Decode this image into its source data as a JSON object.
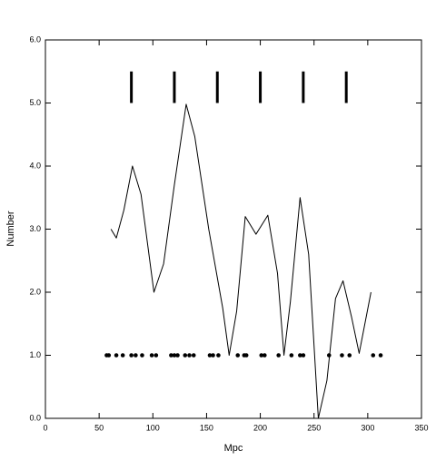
{
  "chart_data": {
    "type": "line",
    "xlabel": "Mpc",
    "ylabel": "Number",
    "xlim": [
      0,
      350
    ],
    "xticks": [
      0,
      50,
      100,
      150,
      200,
      250,
      300,
      350
    ],
    "ylim": [
      0,
      6
    ],
    "yticks": [
      {
        "value": 0,
        "label": "0.0"
      },
      {
        "value": 1,
        "label": "1.0"
      },
      {
        "value": 2,
        "label": "2.0"
      },
      {
        "value": 3,
        "label": "3.0"
      },
      {
        "value": 4,
        "label": "4.0"
      },
      {
        "value": 5,
        "label": "5.0"
      },
      {
        "value": 6,
        "label": "6.0"
      }
    ],
    "series": [
      {
        "color": "#000000",
        "style": "line",
        "x": [
          61,
          66,
          73,
          81,
          89,
          101,
          110,
          120,
          131,
          139,
          152,
          165,
          171,
          178,
          186,
          196,
          207,
          216,
          222,
          228,
          237,
          245,
          254,
          262,
          270,
          277,
          285,
          292,
          303
        ],
        "values": [
          3.0,
          2.86,
          3.3,
          4.0,
          3.55,
          2.0,
          2.45,
          3.7,
          4.98,
          4.47,
          3.0,
          1.75,
          1.0,
          1.7,
          3.2,
          2.92,
          3.22,
          2.3,
          1.0,
          1.85,
          3.5,
          2.6,
          0.0,
          0.6,
          1.9,
          2.18,
          1.6,
          1.03,
          2.0
        ]
      },
      {
        "color": "#000000",
        "style": "markers",
        "x": [
          57,
          59,
          66,
          72,
          80,
          84,
          90,
          99,
          103,
          117,
          120,
          123,
          130,
          134,
          138,
          153,
          156,
          161,
          179,
          185,
          187,
          201,
          204,
          217,
          229,
          237,
          240,
          264,
          276,
          283,
          305,
          312
        ],
        "values": [
          1,
          1,
          1,
          1,
          1,
          1,
          1,
          1,
          1,
          1,
          1,
          1,
          1,
          1,
          1,
          1,
          1,
          1,
          1,
          1,
          1,
          1,
          1,
          1,
          1,
          1,
          1,
          1,
          1,
          1,
          1,
          1
        ]
      }
    ],
    "marker_lines": {
      "color": "#000000",
      "x": [
        80,
        120,
        160,
        200,
        240,
        280
      ],
      "y_from": [
        5,
        5,
        5,
        5,
        5,
        5
      ],
      "y_to": [
        5.5,
        5.5,
        5.5,
        5.5,
        5.5,
        5.5
      ]
    }
  }
}
